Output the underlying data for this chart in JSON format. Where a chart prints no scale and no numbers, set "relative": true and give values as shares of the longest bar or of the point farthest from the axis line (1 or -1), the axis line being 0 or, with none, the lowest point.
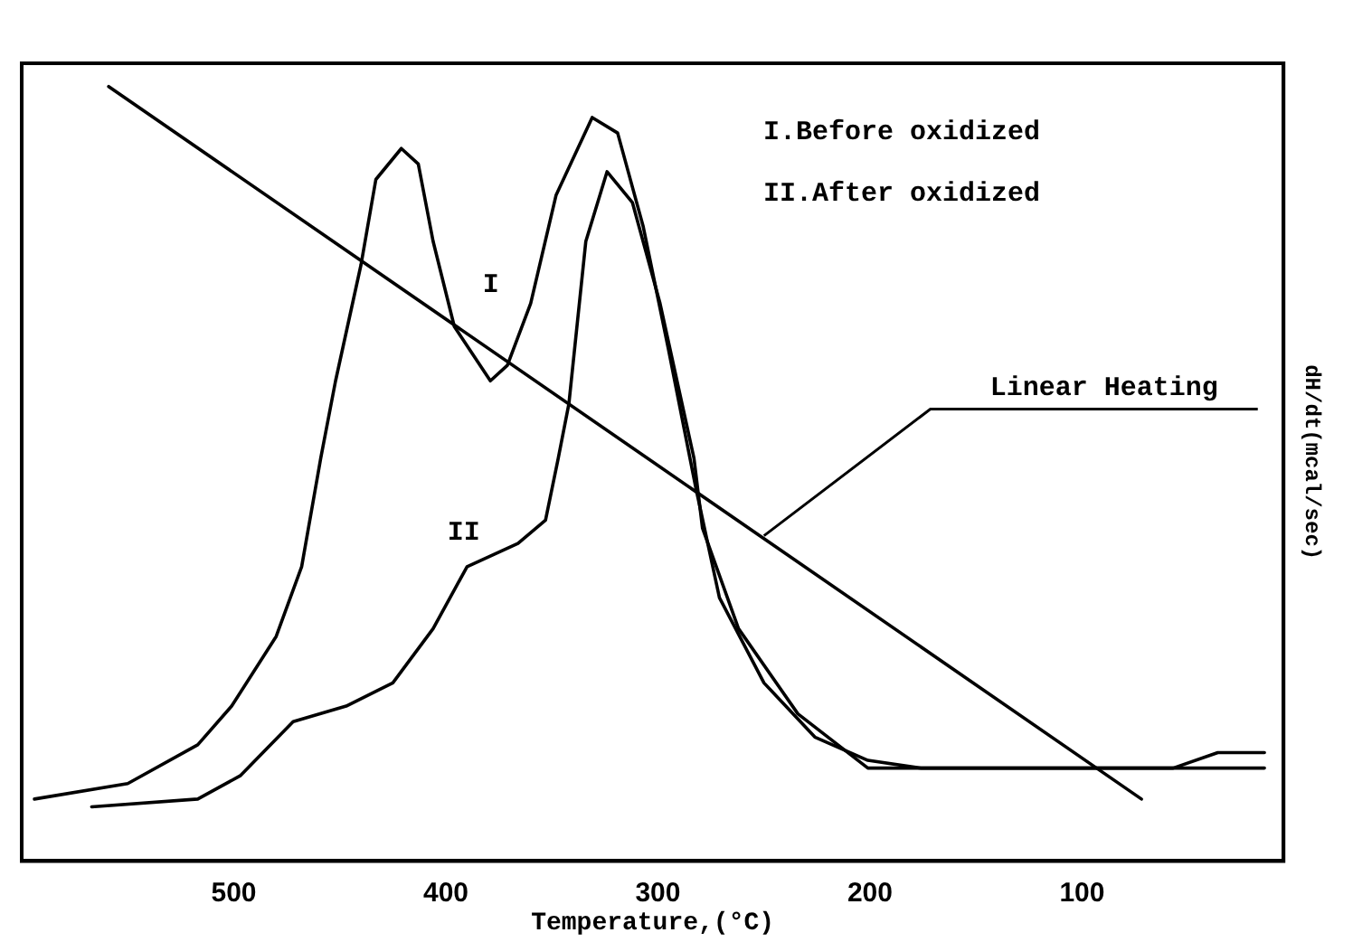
{
  "chart_data": {
    "type": "line",
    "relative": true,
    "xlabel": "Temperature,(°C)",
    "ylabel": "dH/dt(mcal/sec)",
    "xlim": [
      600,
      5
    ],
    "xticks": [
      500,
      400,
      300,
      200,
      100
    ],
    "grid": false,
    "legend": false,
    "marker": "none",
    "line_style": "solid",
    "series": [
      {
        "name": "I",
        "color": "#000000",
        "x": [
          594,
          550,
          517,
          501,
          480,
          468,
          459,
          452,
          440,
          433,
          421,
          413,
          406,
          396,
          379,
          371,
          360,
          348,
          331,
          319,
          307,
          295,
          282,
          271,
          250,
          226,
          201,
          176,
          118,
          57,
          36,
          14
        ],
        "values": [
          0.08,
          0.1,
          0.15,
          0.2,
          0.29,
          0.38,
          0.52,
          0.62,
          0.77,
          0.88,
          0.92,
          0.9,
          0.8,
          0.69,
          0.62,
          0.64,
          0.72,
          0.86,
          0.96,
          0.94,
          0.82,
          0.66,
          0.48,
          0.34,
          0.23,
          0.16,
          0.13,
          0.12,
          0.12,
          0.12,
          0.14,
          0.14
        ]
      },
      {
        "name": "II",
        "color": "#000000",
        "x": [
          567,
          517,
          497,
          472,
          447,
          425,
          406,
          390,
          366,
          353,
          347,
          342,
          334,
          324,
          312,
          299,
          283,
          279,
          262,
          234,
          201,
          159,
          78,
          14
        ],
        "values": [
          0.07,
          0.08,
          0.11,
          0.18,
          0.2,
          0.23,
          0.3,
          0.38,
          0.41,
          0.44,
          0.52,
          0.59,
          0.8,
          0.89,
          0.85,
          0.72,
          0.52,
          0.43,
          0.3,
          0.19,
          0.12,
          0.12,
          0.12,
          0.12
        ]
      },
      {
        "color": "#000000",
        "x": [
          559,
          72
        ],
        "values": [
          1,
          0.08
        ]
      }
    ],
    "annotations": [
      "I.Before oxidized",
      "II.After oxidized",
      {
        "text": "Linear Heating",
        "x": 250,
        "y": 0.42
      }
    ]
  }
}
